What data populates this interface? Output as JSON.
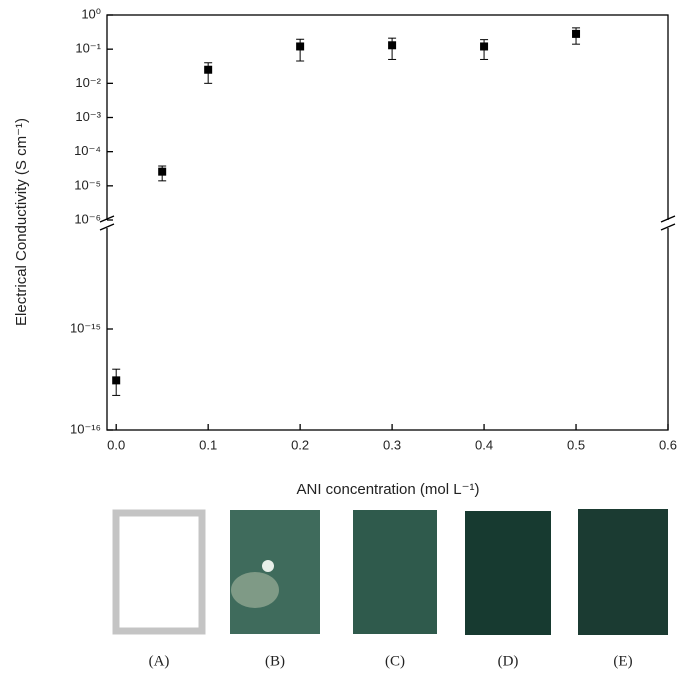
{
  "chart_data": {
    "type": "scatter",
    "y_label": "Electrical Conductivity (S cm⁻¹)",
    "x_label": "ANI concentration (mol L⁻¹)",
    "log_scale": true,
    "axis_break": true,
    "xlim": [
      -0.01,
      0.6
    ],
    "xticks": [
      {
        "value": 0,
        "label": "0.0"
      },
      0.1,
      0.2,
      0.3,
      0.4,
      0.5,
      0.6
    ],
    "ylim": [
      1e-06,
      1
    ],
    "yticks": [
      {
        "value": 1e-06,
        "label": "10⁻⁶"
      },
      {
        "value": 1e-05,
        "label": "10⁻⁵"
      },
      {
        "value": 0.0001,
        "label": "10⁻⁴"
      },
      {
        "value": 0.001,
        "label": "10⁻³"
      },
      {
        "value": 0.01,
        "label": "10⁻²"
      },
      {
        "value": 0.1,
        "label": "10⁻¹"
      },
      {
        "value": 1,
        "label": "10⁰"
      }
    ],
    "ylim_lower": [
      1e-16,
      1e-14
    ],
    "yticks_lower": [
      {
        "value": 1e-16,
        "label": "10⁻¹⁶"
      },
      {
        "value": 1e-15,
        "label": "10⁻¹⁵"
      }
    ],
    "x": [
      0,
      0.05,
      0.1,
      0.2,
      0.3,
      0.4,
      0.5
    ],
    "series": [
      {
        "color": "#000000",
        "values": [
          3.1e-16,
          2.6e-05,
          0.025,
          0.12,
          0.13,
          0.12,
          0.28
        ],
        "errors": [
          9e-17,
          1.2e-05,
          0.015,
          0.075,
          0.08,
          0.07,
          0.14
        ]
      }
    ],
    "panels": [
      "(A)",
      "(B)",
      "(C)",
      "(D)",
      "(E)"
    ]
  }
}
